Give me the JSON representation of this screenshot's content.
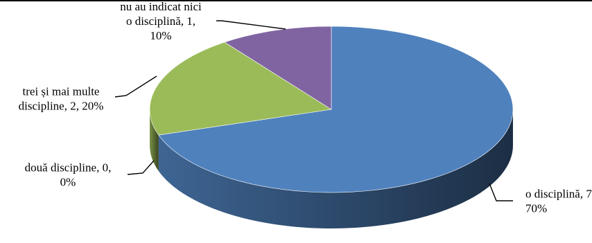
{
  "chart_data": {
    "type": "pie",
    "title": "",
    "three_d": true,
    "categories": [
      "o disciplină",
      "două discipline",
      "trei și mai multe discipline",
      "nu au indicat nici o disciplină"
    ],
    "values": [
      7,
      0,
      2,
      1
    ],
    "percents": [
      70,
      0,
      20,
      10
    ],
    "colors": [
      "#4f81bd",
      "#c0504d",
      "#9bbb59",
      "#8064a2"
    ],
    "data_labels": [
      [
        "o disciplină, 7,",
        "70%"
      ],
      [
        "două discipline, 0,",
        "0%"
      ],
      [
        "trei și mai multe",
        "discipline, 2, 20%"
      ],
      [
        "nu au indicat nici",
        "o disciplină, 1,",
        "10%"
      ]
    ],
    "legend": "none"
  }
}
